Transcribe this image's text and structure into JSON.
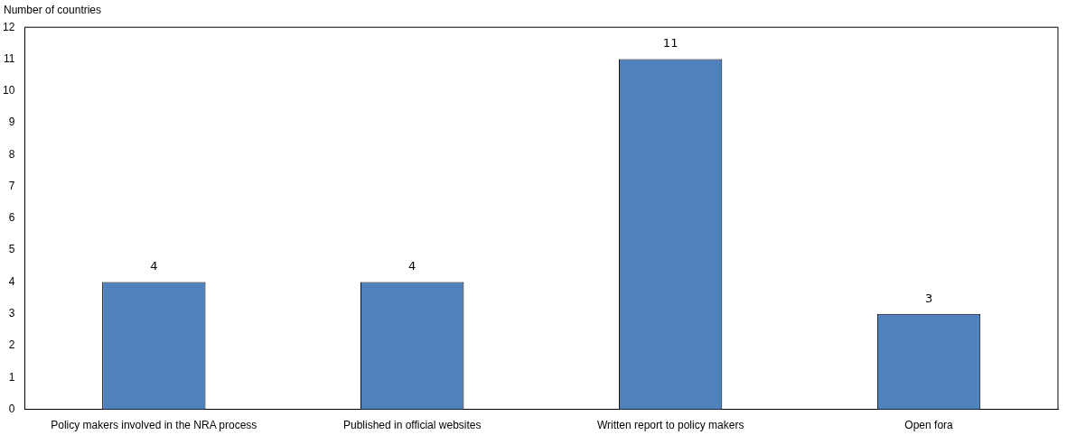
{
  "chart_data": {
    "type": "bar",
    "ylabel": "Number of countries",
    "categories": [
      "Policy makers involved in the NRA process",
      "Published in official websites",
      "Written report to policy makers",
      "Open fora"
    ],
    "values": [
      4,
      4,
      11,
      3
    ],
    "color": "#4f81bd",
    "ylim": [
      0,
      12
    ],
    "yticks": [
      0,
      1,
      2,
      3,
      4,
      5,
      6,
      7,
      8,
      9,
      10,
      11,
      12
    ],
    "grid": false,
    "data_labels": true
  }
}
